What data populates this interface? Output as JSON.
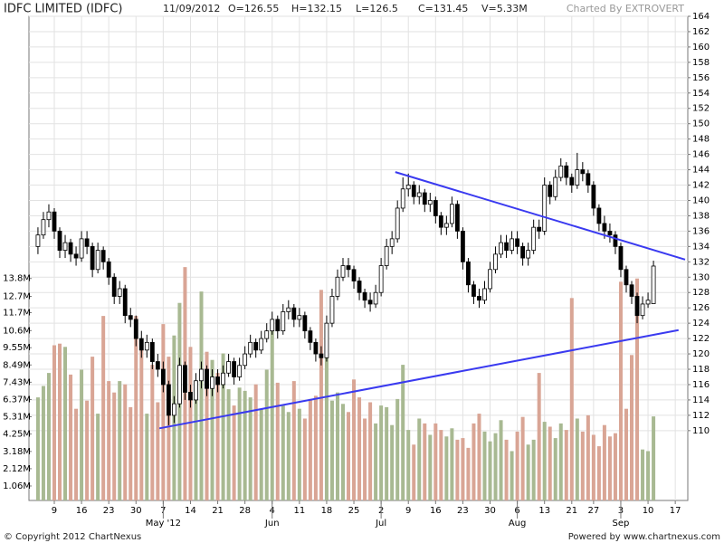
{
  "header": {
    "title": "IDFC LIMITED (IDFC)",
    "date": "11/09/2012",
    "open": "O=126.55",
    "high": "H=132.15",
    "low": "L=126.5",
    "close": "C=131.45",
    "volume": "V=5.33M",
    "credit": "Charted By EXTROVERT"
  },
  "footer": {
    "copyright": "© Copyright 2012 ChartNexus",
    "powered": "Powered by www.chartnexus.com"
  },
  "chart_data": {
    "type": "candlestick",
    "up_color": "#ffffff",
    "down_color": "#000000",
    "volume_up_color": "#a8b992",
    "volume_down_color": "#d9a595",
    "grid": true,
    "xlim": [
      -1.65,
      119.3
    ],
    "xticks": [
      {
        "value": 3,
        "label": "9"
      },
      {
        "value": 8,
        "label": "16"
      },
      {
        "value": 13,
        "label": "23"
      },
      {
        "value": 18,
        "label": "30"
      },
      {
        "value": 23,
        "label": "7"
      },
      {
        "value": 28,
        "label": "14"
      },
      {
        "value": 33,
        "label": "21"
      },
      {
        "value": 38,
        "label": "28"
      },
      {
        "value": 43,
        "label": "4"
      },
      {
        "value": 48,
        "label": "11"
      },
      {
        "value": 53,
        "label": "18"
      },
      {
        "value": 58,
        "label": "25"
      },
      {
        "value": 63,
        "label": "2"
      },
      {
        "value": 68,
        "label": "9"
      },
      {
        "value": 73,
        "label": "16"
      },
      {
        "value": 78,
        "label": "23"
      },
      {
        "value": 83,
        "label": "30"
      },
      {
        "value": 88,
        "label": "6"
      },
      {
        "value": 93,
        "label": "13"
      },
      {
        "value": 98,
        "label": "21"
      },
      {
        "value": 102,
        "label": "27"
      },
      {
        "value": 107,
        "label": "3"
      },
      {
        "value": 112,
        "label": "10"
      },
      {
        "value": 117,
        "label": "17"
      }
    ],
    "month_ticks": [
      {
        "value": 23,
        "label": "May '12"
      },
      {
        "value": 43,
        "label": "Jun"
      },
      {
        "value": 63,
        "label": "Jul"
      },
      {
        "value": 88,
        "label": "Aug"
      },
      {
        "value": 107,
        "label": "Sep"
      }
    ],
    "ylim": [
      100.9,
      164
    ],
    "yticks": [
      110,
      112,
      114,
      116,
      118,
      120,
      122,
      124,
      126,
      128,
      130,
      132,
      134,
      136,
      138,
      140,
      142,
      144,
      146,
      148,
      150,
      152,
      154,
      156,
      158,
      160,
      162,
      164
    ],
    "vlim": [
      0.17,
      29.9
    ],
    "vticks": [
      {
        "value": 1.06,
        "label": "1.06M"
      },
      {
        "value": 2.12,
        "label": "2.12M"
      },
      {
        "value": 3.18,
        "label": "3.18M"
      },
      {
        "value": 4.25,
        "label": "4.25M"
      },
      {
        "value": 5.31,
        "label": "5.31M"
      },
      {
        "value": 6.37,
        "label": "6.37M"
      },
      {
        "value": 7.43,
        "label": "7.43M"
      },
      {
        "value": 8.49,
        "label": "8.49M"
      },
      {
        "value": 9.55,
        "label": "9.55M"
      },
      {
        "value": 10.6,
        "label": "10.6M"
      },
      {
        "value": 11.7,
        "label": "11.7M"
      },
      {
        "value": 12.7,
        "label": "12.7M"
      },
      {
        "value": 13.8,
        "label": "13.8M"
      }
    ],
    "open": [
      134,
      135.5,
      137.5,
      138.5,
      136,
      133.5,
      134.5,
      133,
      132.5,
      135,
      134,
      131,
      133.5,
      132,
      130,
      127.5,
      128.5,
      125,
      124.5,
      122,
      120.5,
      121.5,
      119,
      118,
      116,
      112,
      113.5,
      118.5,
      115,
      114,
      116.5,
      118,
      115.5,
      117,
      116,
      117.5,
      119,
      117,
      118.5,
      120,
      121.5,
      120.5,
      122,
      123,
      124.5,
      123,
      125.5,
      126,
      124.5,
      125,
      123,
      121.5,
      120,
      119.5,
      124,
      127.5,
      130,
      131.5,
      131,
      129.5,
      128,
      127,
      126.5,
      128,
      131.5,
      134,
      135,
      139,
      141.5,
      142,
      140.5,
      141,
      139.5,
      140,
      138,
      136.5,
      137,
      139.5,
      136,
      132,
      129,
      127.5,
      127,
      128.5,
      131,
      133,
      134.5,
      133.5,
      135,
      134,
      132.5,
      133.5,
      136.5,
      136,
      142,
      140.5,
      143,
      144.5,
      143,
      142,
      144,
      143.5,
      142,
      139,
      137,
      136,
      135.5,
      134,
      131,
      129,
      127.5,
      125,
      126.5,
      126.55
    ],
    "high": [
      136.5,
      138.5,
      139.5,
      139,
      136.5,
      135.5,
      135,
      134,
      136,
      136,
      134.5,
      134.5,
      134,
      132.5,
      130.5,
      129.5,
      129,
      126,
      125,
      123,
      122.5,
      122,
      120,
      119,
      116.5,
      114.5,
      119.5,
      119,
      116,
      117.5,
      119,
      118.5,
      118,
      118,
      118.5,
      120,
      119.5,
      119.5,
      121,
      122.5,
      122,
      123,
      124,
      125.5,
      125,
      126.5,
      127,
      126.5,
      126,
      125.5,
      123.5,
      122,
      121,
      125,
      128.5,
      131,
      132.5,
      132.5,
      131.5,
      130,
      128.5,
      128,
      129,
      132.5,
      135,
      136,
      140,
      143,
      143.5,
      142.5,
      142,
      141.5,
      141,
      140.5,
      138.5,
      138,
      140.5,
      140,
      136.5,
      132.5,
      129.5,
      128.5,
      129.5,
      132,
      134,
      135.5,
      135.5,
      136,
      136,
      134.5,
      134.5,
      137.5,
      137.5,
      143,
      142.5,
      144,
      145.5,
      145,
      143.5,
      146.2,
      145,
      144,
      142.5,
      139.5,
      138,
      137,
      136,
      134.5,
      131.5,
      129.5,
      128,
      127.5,
      128,
      132.15
    ],
    "low": [
      133,
      135,
      136.5,
      135,
      132.5,
      132.5,
      132,
      131.5,
      132,
      133,
      130,
      130.5,
      131,
      129,
      126.5,
      126.5,
      124,
      123.5,
      121,
      119.5,
      119.5,
      118,
      117,
      115,
      110.7,
      111,
      113,
      114,
      113,
      113.5,
      115.5,
      114.5,
      114.5,
      115,
      115.5,
      117,
      116,
      116.5,
      118,
      119.5,
      119.5,
      120,
      121.5,
      122.5,
      122,
      122.5,
      124.5,
      123.5,
      123.5,
      122,
      120.5,
      119,
      118.5,
      119,
      123.5,
      127,
      129.5,
      130,
      128.5,
      127,
      126,
      125.5,
      126,
      127.5,
      131,
      133,
      134.5,
      138.5,
      140.5,
      139.5,
      139.5,
      138.5,
      138.5,
      137,
      135.5,
      135.5,
      136.5,
      135,
      131,
      128,
      126.5,
      126,
      126.5,
      128,
      130.5,
      132.5,
      132.5,
      133,
      133,
      131.5,
      131.5,
      133,
      135,
      135.5,
      139.5,
      140,
      142.5,
      142,
      141,
      141.5,
      142.5,
      141,
      138,
      136,
      135,
      134.5,
      133,
      130,
      128,
      126.5,
      124,
      124.5,
      126,
      126.5
    ],
    "close": [
      135.5,
      137.5,
      138.5,
      136,
      133.5,
      134.5,
      133,
      132.5,
      135,
      134,
      131,
      133.5,
      132,
      130,
      127.5,
      128.5,
      125,
      124.5,
      122,
      120.5,
      121.5,
      119,
      118,
      116,
      112,
      113.5,
      118.5,
      115,
      114,
      116.5,
      118,
      115.5,
      117,
      116,
      117.5,
      119,
      117,
      118.5,
      120,
      121.5,
      120.5,
      122,
      123,
      124.5,
      123,
      125.5,
      126,
      124.5,
      125,
      123,
      121.5,
      120,
      119.5,
      124,
      127.5,
      130,
      131.5,
      131,
      129.5,
      128,
      127,
      126.5,
      128,
      131.5,
      134,
      135,
      139,
      141.5,
      142,
      140.5,
      141,
      139.5,
      140,
      138,
      136.5,
      137,
      139.5,
      136,
      132,
      129,
      127.5,
      127,
      128.5,
      131,
      133,
      134.5,
      133.5,
      135,
      134,
      132.5,
      133.5,
      136.5,
      136,
      142,
      140.5,
      143,
      144.5,
      143,
      142,
      144,
      143.5,
      142,
      139,
      137,
      136,
      135.5,
      134,
      131,
      129,
      127.5,
      125,
      126.5,
      127,
      131.45
    ],
    "volume": [
      6.5,
      7.2,
      8.0,
      9.7,
      9.8,
      9.6,
      7.9,
      5.8,
      8.2,
      6.3,
      9.0,
      5.5,
      11.5,
      7.5,
      6.8,
      7.5,
      7.3,
      5.9,
      11.5,
      9.4,
      5.5,
      8.5,
      6.2,
      11.0,
      9.0,
      10.3,
      12.3,
      14.5,
      9.6,
      7.4,
      13.0,
      9.3,
      8.8,
      8.0,
      9.2,
      7.0,
      6.0,
      7.1,
      6.9,
      6.5,
      7.3,
      5.8,
      8.2,
      10.7,
      7.4,
      6.0,
      5.6,
      7.5,
      5.8,
      5.2,
      6.4,
      6.6,
      13.1,
      10.3,
      6.3,
      6.8,
      6.1,
      5.6,
      7.6,
      6.5,
      5.2,
      6.2,
      4.9,
      6.0,
      5.9,
      4.8,
      6.4,
      8.5,
      4.5,
      3.6,
      5.2,
      4.9,
      4.2,
      4.9,
      4.5,
      4.1,
      4.6,
      3.9,
      4.0,
      3.4,
      4.9,
      5.5,
      4.4,
      3.8,
      4.3,
      5.1,
      3.9,
      3.2,
      4.4,
      5.3,
      3.6,
      3.9,
      8.0,
      5.0,
      4.7,
      4.0,
      4.9,
      4.5,
      12.6,
      5.2,
      4.4,
      5.4,
      4.2,
      3.5,
      4.8,
      4.1,
      4.3,
      13.6,
      5.8,
      9.1,
      13.8,
      3.3,
      3.2,
      5.33
    ],
    "trendline_color": "#3a3af0",
    "trendlines": [
      {
        "x": [
          65.6,
          118.8
        ],
        "y": [
          143.7,
          132.3
        ]
      },
      {
        "x": [
          22.3,
          117.6
        ],
        "y": [
          110.3,
          123.1
        ]
      }
    ]
  }
}
